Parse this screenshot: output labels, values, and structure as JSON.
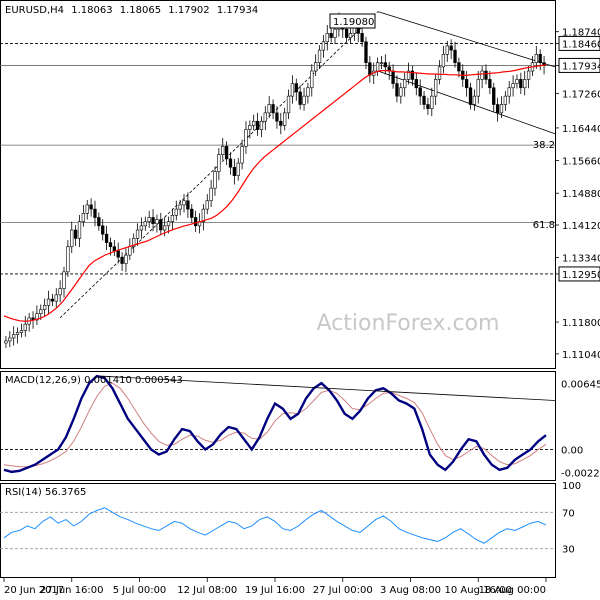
{
  "chart_data": [
    {
      "type": "candlestick",
      "title": "EURUSD,H4",
      "ohlc": {
        "open": "1.18063",
        "high": "1.18065",
        "low": "1.17902",
        "close": "1.17934"
      },
      "ylim": [
        1.1075,
        1.1945
      ],
      "y_ticks": [
        "1.18740",
        "1.18460",
        "1.17934",
        "1.17260",
        "1.16440",
        "1.15660",
        "1.14880",
        "1.14120",
        "1.13340",
        "1.12950",
        "1.11800",
        "1.11040"
      ],
      "boxed_ticks": [
        "1.18460",
        "1.17934",
        "1.12950"
      ],
      "x_ticks": [
        "20 Jun 2017",
        "27 Jun 16:00",
        "5 Jul 00:00",
        "12 Jul 08:00",
        "19 Jul 16:00",
        "27 Jul 00:00",
        "3 Aug 08:00",
        "10 Aug 16:00",
        "18 Aug 00:00"
      ],
      "peak_label": "1.19080",
      "fib_labels": [
        "38.2",
        "61.8"
      ],
      "horizontal_levels": [
        1.1846,
        1.17934,
        1.1603,
        1.1418,
        1.1295
      ],
      "closes": [
        1.1135,
        1.1142,
        1.115,
        1.1155,
        1.116,
        1.1175,
        1.119,
        1.1185,
        1.12,
        1.121,
        1.122,
        1.1235,
        1.123,
        1.1245,
        1.126,
        1.13,
        1.136,
        1.14,
        1.138,
        1.142,
        1.144,
        1.146,
        1.145,
        1.143,
        1.141,
        1.139,
        1.137,
        1.136,
        1.135,
        1.1335,
        1.132,
        1.134,
        1.136,
        1.138,
        1.14,
        1.141,
        1.142,
        1.143,
        1.1415,
        1.1425,
        1.14,
        1.141,
        1.142,
        1.1435,
        1.145,
        1.146,
        1.147,
        1.145,
        1.143,
        1.141,
        1.142,
        1.145,
        1.147,
        1.15,
        1.154,
        1.158,
        1.16,
        1.157,
        1.155,
        1.153,
        1.156,
        1.16,
        1.164,
        1.165,
        1.166,
        1.164,
        1.166,
        1.168,
        1.17,
        1.168,
        1.166,
        1.165,
        1.168,
        1.172,
        1.175,
        1.173,
        1.17,
        1.172,
        1.174,
        1.178,
        1.18,
        1.183,
        1.185,
        1.187,
        1.186,
        1.188,
        1.19,
        1.188,
        1.186,
        1.187,
        1.189,
        1.187,
        1.185,
        1.18,
        1.177,
        1.178,
        1.18,
        1.18,
        1.179,
        1.178,
        1.175,
        1.172,
        1.174,
        1.176,
        1.178,
        1.176,
        1.174,
        1.172,
        1.17,
        1.169,
        1.172,
        1.176,
        1.179,
        1.182,
        1.184,
        1.183,
        1.18,
        1.178,
        1.176,
        1.174,
        1.17,
        1.172,
        1.176,
        1.178,
        1.176,
        1.174,
        1.17,
        1.168,
        1.17,
        1.172,
        1.174,
        1.175,
        1.176,
        1.174,
        1.176,
        1.178,
        1.18,
        1.182,
        1.18,
        1.1793
      ],
      "ma": [
        1.1195,
        1.119,
        1.1186,
        1.1183,
        1.1182,
        1.1183,
        1.1186,
        1.119,
        1.1196,
        1.1205,
        1.1215,
        1.1228,
        1.1245,
        1.1262,
        1.128,
        1.1298,
        1.1315,
        1.1326,
        1.1333,
        1.134,
        1.1345,
        1.135,
        1.1354,
        1.1358,
        1.1362,
        1.1366,
        1.137,
        1.1374,
        1.138,
        1.1386,
        1.1392,
        1.1397,
        1.1402,
        1.1406,
        1.141,
        1.1413,
        1.1417,
        1.142,
        1.1424,
        1.1428,
        1.1435,
        1.1445,
        1.1457,
        1.1472,
        1.149,
        1.151,
        1.153,
        1.1548,
        1.1562,
        1.1575,
        1.1585,
        1.1595,
        1.1605,
        1.1615,
        1.1625,
        1.1635,
        1.1645,
        1.1655,
        1.1665,
        1.1675,
        1.1685,
        1.1695,
        1.1705,
        1.1715,
        1.1725,
        1.1735,
        1.1745,
        1.1755,
        1.1765,
        1.1772,
        1.1778,
        1.1781,
        1.1781,
        1.178,
        1.1778,
        1.1778,
        1.1777,
        1.1776,
        1.1775,
        1.1774,
        1.1773,
        1.1773,
        1.1772,
        1.1772,
        1.1771,
        1.1771,
        1.177,
        1.177,
        1.1771,
        1.1772,
        1.1773,
        1.1774,
        1.1775,
        1.1776,
        1.1778,
        1.1779,
        1.1781,
        1.1784,
        1.1787,
        1.1789,
        1.1791,
        1.1793,
        1.1795
      ]
    },
    {
      "type": "line",
      "title": "MACD(12,26,9) 0.001410 0.000543",
      "ylim": [
        -0.0029,
        0.0075
      ],
      "y_ticks": [
        "0.006454",
        "0.00",
        "-0.002252"
      ],
      "macd": [
        -0.002,
        -0.0022,
        -0.0021,
        -0.0018,
        -0.0015,
        -0.001,
        -0.0005,
        0.0,
        0.0012,
        0.003,
        0.005,
        0.0065,
        0.0072,
        0.007,
        0.006,
        0.0045,
        0.003,
        0.002,
        0.001,
        0.0,
        -0.0005,
        -0.0002,
        0.001,
        0.002,
        0.0018,
        0.0008,
        0.0,
        0.0005,
        0.0015,
        0.0022,
        0.002,
        0.001,
        0.0,
        0.0012,
        0.003,
        0.0045,
        0.004,
        0.003,
        0.0035,
        0.005,
        0.006,
        0.0065,
        0.0058,
        0.0048,
        0.0035,
        0.003,
        0.0038,
        0.005,
        0.0058,
        0.006,
        0.0055,
        0.0048,
        0.0045,
        0.004,
        0.002,
        -0.0005,
        -0.0015,
        -0.002,
        -0.0012,
        0.0,
        0.001,
        0.0008,
        -0.0005,
        -0.0015,
        -0.002,
        -0.0018,
        -0.001,
        -0.0005,
        0.0,
        0.0008,
        0.0014
      ],
      "signal": [
        -0.0015,
        -0.0016,
        -0.0017,
        -0.0017,
        -0.0016,
        -0.0014,
        -0.0011,
        -0.0007,
        -0.0002,
        0.0008,
        0.0022,
        0.0038,
        0.0052,
        0.0062,
        0.0065,
        0.006,
        0.005,
        0.0038,
        0.0026,
        0.0016,
        0.0008,
        0.0004,
        0.0005,
        0.001,
        0.0014,
        0.0013,
        0.0009,
        0.0007,
        0.0009,
        0.0014,
        0.0017,
        0.0016,
        0.0011,
        0.001,
        0.0017,
        0.0028,
        0.0035,
        0.0036,
        0.0035,
        0.004,
        0.0048,
        0.0056,
        0.0058,
        0.0055,
        0.0048,
        0.004,
        0.0039,
        0.0044,
        0.005,
        0.0055,
        0.0056,
        0.0053,
        0.005,
        0.0046,
        0.0036,
        0.002,
        0.0005,
        -0.0006,
        -0.001,
        -0.0007,
        -0.0002,
        0.0003,
        0.0001,
        -0.0006,
        -0.0012,
        -0.0015,
        -0.0014,
        -0.001,
        -0.0006,
        0.0,
        0.0005
      ]
    },
    {
      "type": "line",
      "title": "RSI(14) 56.3765",
      "ylim": [
        0,
        100
      ],
      "y_ticks": [
        "100",
        "70",
        "30"
      ],
      "rsi": [
        42,
        48,
        50,
        55,
        52,
        60,
        65,
        58,
        62,
        55,
        60,
        68,
        72,
        75,
        70,
        65,
        62,
        58,
        55,
        52,
        50,
        55,
        60,
        58,
        52,
        48,
        45,
        50,
        55,
        60,
        58,
        52,
        55,
        62,
        65,
        60,
        52,
        50,
        55,
        62,
        68,
        72,
        66,
        60,
        55,
        50,
        48,
        55,
        62,
        66,
        60,
        52,
        48,
        45,
        42,
        40,
        38,
        42,
        48,
        52,
        46,
        40,
        36,
        42,
        48,
        52,
        50,
        54,
        58,
        60,
        56
      ]
    }
  ],
  "watermark": "ActionForex.com"
}
